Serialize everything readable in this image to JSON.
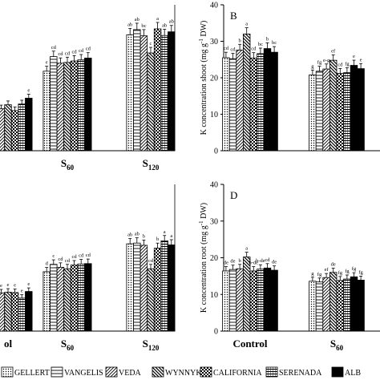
{
  "colors": {
    "axis": "#000000",
    "bar_edge": "#000000",
    "background": "#ffffff"
  },
  "legend": {
    "items": [
      {
        "label": "GELLERT",
        "pattern": "dots"
      },
      {
        "label": "VANGELIS",
        "pattern": "hlines"
      },
      {
        "label": "VEDA",
        "pattern": "diag-right"
      },
      {
        "label": "WYNNYK",
        "pattern": "diag-left"
      },
      {
        "label": "CALIFORNIA",
        "pattern": "checker"
      },
      {
        "label": "SERENADA",
        "pattern": "hdense"
      },
      {
        "label": "ALB",
        "pattern": "solid"
      }
    ]
  },
  "chart_data": [
    {
      "type": "bar",
      "panel_letter": "",
      "ylabel": "",
      "ylim": [
        0,
        40
      ],
      "groups": [
        "Control",
        "S60",
        "S120"
      ],
      "group_labels_visible": [
        "",
        "S",
        "S"
      ],
      "group_label_subscripts": [
        "",
        "60",
        "120"
      ],
      "series_values": [
        [
          16.5,
          21.8,
          31.8
        ],
        [
          14.2,
          25.8,
          33.2
        ],
        [
          11.5,
          24.0,
          31.5
        ],
        [
          12.6,
          24.2,
          26.8
        ],
        [
          11.0,
          24.6,
          33.4
        ],
        [
          12.8,
          24.9,
          31.6
        ],
        [
          14.4,
          25.4,
          32.6
        ]
      ],
      "letters": [
        [
          "",
          "e",
          "ab"
        ],
        [
          "",
          "cd",
          "ab"
        ],
        [
          "",
          "cd",
          "bc"
        ],
        [
          "",
          "cd",
          "c"
        ],
        [
          "",
          "cd",
          "a"
        ],
        [
          "",
          "cd",
          "ab"
        ],
        [
          "e",
          "cd",
          "ab"
        ]
      ]
    },
    {
      "type": "bar",
      "panel_letter": "B",
      "ylabel": "K concentration shoot (mg g-1 DW)",
      "ylim": [
        0,
        40
      ],
      "yticks": [
        0,
        10,
        20,
        30,
        40
      ],
      "groups": [
        "Control",
        "S60"
      ],
      "group_labels_visible": [
        "",
        ""
      ],
      "group_label_subscripts": [
        "",
        ""
      ],
      "series_values": [
        [
          25.5,
          20.8
        ],
        [
          25.2,
          21.8
        ],
        [
          27.6,
          22.4
        ],
        [
          32.0,
          24.8
        ],
        [
          25.4,
          21.2
        ],
        [
          26.6,
          21.4
        ],
        [
          28.0,
          23.4
        ],
        [
          27.0,
          22.5
        ]
      ],
      "letters": [
        [
          "cd",
          "g"
        ],
        [
          "cd",
          "fg"
        ],
        [
          "b",
          "e-g"
        ],
        [
          "a",
          "ef"
        ],
        [
          "cd",
          "cd"
        ],
        [
          "bc",
          "fg"
        ],
        [
          "b",
          "e"
        ],
        [
          "bc",
          "e"
        ]
      ]
    },
    {
      "type": "bar",
      "panel_letter": "",
      "ylabel": "",
      "ylim": [
        0,
        40
      ],
      "groups": [
        "Control",
        "S60",
        "S120"
      ],
      "group_labels_visible": [
        "ol",
        "S",
        "S"
      ],
      "group_label_subscripts": [
        "",
        "60",
        "120"
      ],
      "series_values": [
        [
          11.5,
          16.2,
          23.8
        ],
        [
          9.8,
          18.2,
          24.0
        ],
        [
          10.4,
          17.4,
          23.4
        ],
        [
          10.6,
          17.0,
          17.0
        ],
        [
          10.5,
          18.0,
          22.6
        ],
        [
          9.0,
          18.3,
          24.6
        ],
        [
          10.8,
          18.4,
          23.5
        ]
      ],
      "letters": [
        [
          "e",
          "d",
          "ab"
        ],
        [
          "e",
          "c",
          "ab"
        ],
        [
          "e",
          "cd",
          "b"
        ],
        [
          "e",
          "cd",
          "cd"
        ],
        [
          "e",
          "cd",
          "b"
        ],
        [
          "e",
          "cd",
          "a"
        ],
        [
          "e",
          "cd",
          "a"
        ]
      ]
    },
    {
      "type": "bar",
      "panel_letter": "D",
      "ylabel": "K concentration root (mg g-1 DW)",
      "ylim": [
        0,
        40
      ],
      "yticks": [
        0,
        10,
        20,
        30,
        40
      ],
      "groups": [
        "Control",
        "S60"
      ],
      "group_labels_visible": [
        "Control",
        "S"
      ],
      "group_label_subscripts": [
        "",
        "60"
      ],
      "series_values": [
        [
          16.4,
          13.6
        ],
        [
          16.8,
          13.4
        ],
        [
          17.0,
          14.6
        ],
        [
          20.2,
          16.0
        ],
        [
          16.4,
          13.8
        ],
        [
          16.9,
          14.2
        ],
        [
          17.2,
          14.8
        ],
        [
          16.6,
          13.9
        ]
      ],
      "letters": [
        [
          "de",
          "g"
        ],
        [
          "de",
          "fg"
        ],
        [
          "b",
          "ef"
        ],
        [
          "a",
          "de"
        ],
        [
          "b-de",
          "fg"
        ],
        [
          "b-de",
          "fg"
        ],
        [
          "cd",
          "fg"
        ],
        [
          "de",
          "fg"
        ]
      ]
    }
  ]
}
